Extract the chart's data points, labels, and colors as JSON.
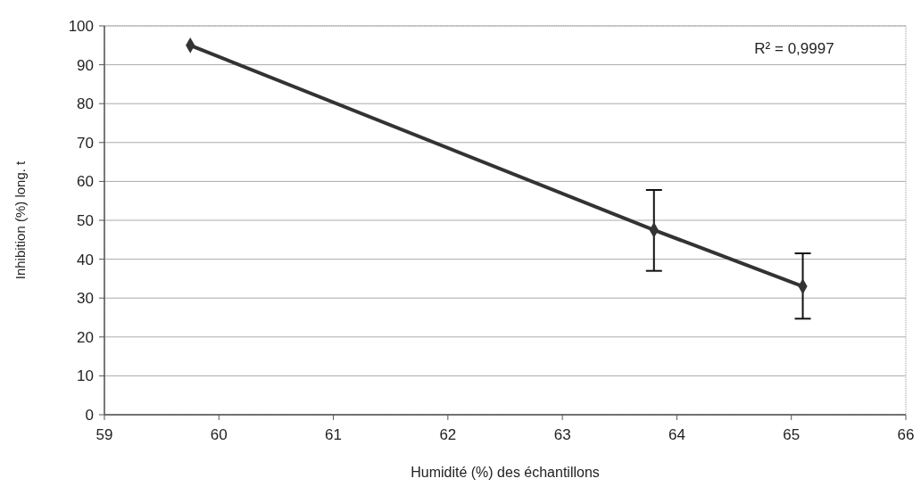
{
  "chart_data": {
    "type": "line",
    "xlabel": "Humidité (%) des échantillons",
    "ylabel": "Inhibition (%) long. t",
    "x": [
      59.75,
      63.8,
      65.1
    ],
    "series": [
      {
        "color": "#333333",
        "values": [
          95,
          47.5,
          33
        ],
        "errors": [
          null,
          [
            37,
            57.8
          ],
          [
            24.7,
            41.5
          ]
        ]
      }
    ],
    "xlim": [
      59,
      66
    ],
    "xticks": [
      59,
      60,
      61,
      62,
      63,
      64,
      65,
      66
    ],
    "ylim": [
      0,
      100
    ],
    "yticks": [
      0,
      10,
      20,
      30,
      40,
      50,
      60,
      70,
      80,
      90,
      100
    ],
    "grid": "y",
    "marker": "diamond",
    "line_style": "solid",
    "annotations": [
      "R² = 0,9997"
    ]
  }
}
